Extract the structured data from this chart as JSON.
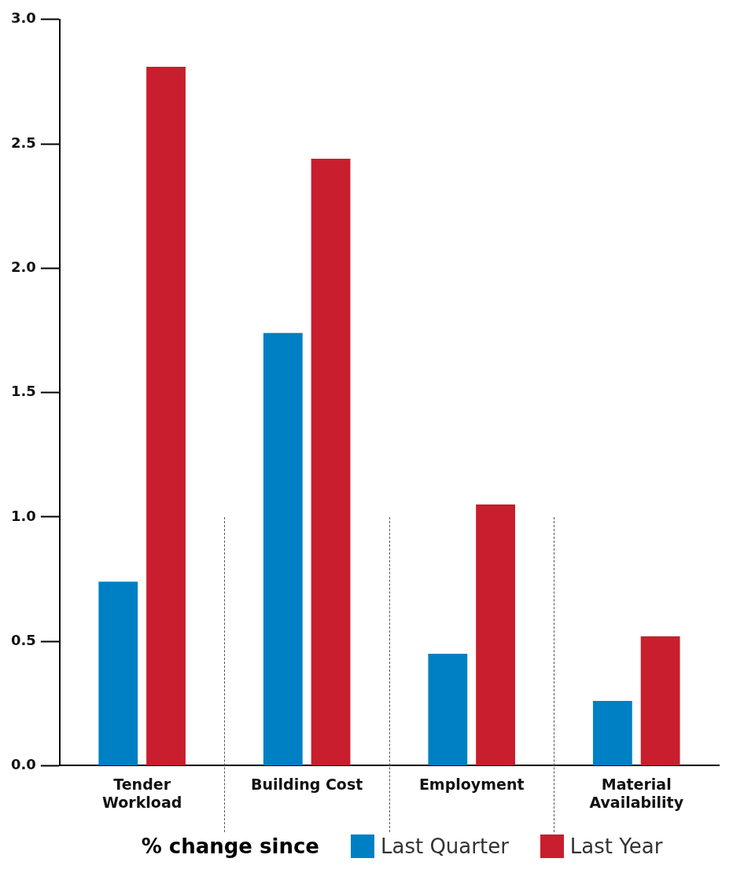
{
  "chart_data": {
    "type": "bar",
    "categories": [
      "Tender Workload",
      "Building Cost",
      "Employment",
      "Material Availability"
    ],
    "series": [
      {
        "name": "Last Quarter",
        "color": "#0080c4",
        "values": [
          0.74,
          1.74,
          0.45,
          0.26
        ]
      },
      {
        "name": "Last Year",
        "color": "#c81e2d",
        "values": [
          2.81,
          2.44,
          1.05,
          0.52
        ]
      }
    ],
    "ylim": [
      0,
      3
    ],
    "yticks": [
      {
        "value": 0,
        "label": "0.0"
      },
      0.5,
      {
        "value": 1,
        "label": "1.0"
      },
      1.5,
      {
        "value": 2,
        "label": "2.0"
      },
      2.5,
      {
        "value": 3,
        "label": "3.0"
      }
    ],
    "grid": false,
    "legend": "bottom",
    "legend_title": "% change since"
  }
}
